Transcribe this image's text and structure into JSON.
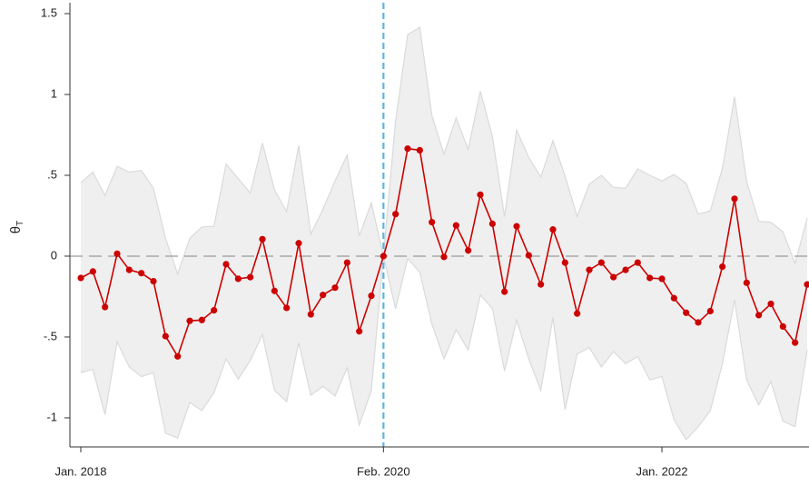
{
  "chart_data": {
    "type": "line",
    "y_label": "θ",
    "y_label_subscript": "T",
    "x": [
      "2018-01",
      "2018-02",
      "2018-03",
      "2018-04",
      "2018-05",
      "2018-06",
      "2018-07",
      "2018-08",
      "2018-09",
      "2018-10",
      "2018-11",
      "2018-12",
      "2019-01",
      "2019-02",
      "2019-03",
      "2019-04",
      "2019-05",
      "2019-06",
      "2019-07",
      "2019-08",
      "2019-09",
      "2019-10",
      "2019-11",
      "2019-12",
      "2020-01",
      "2020-02",
      "2020-03",
      "2020-04",
      "2020-05",
      "2020-06",
      "2020-07",
      "2020-08",
      "2020-09",
      "2020-10",
      "2020-11",
      "2020-12",
      "2021-01",
      "2021-02",
      "2021-03",
      "2021-04",
      "2021-05",
      "2021-06",
      "2021-07",
      "2021-08",
      "2021-09",
      "2021-10",
      "2021-11",
      "2021-12",
      "2022-01",
      "2022-02",
      "2022-03",
      "2022-04",
      "2022-05",
      "2022-06",
      "2022-07",
      "2022-08",
      "2022-09",
      "2022-10",
      "2022-11",
      "2022-12",
      "2023-01"
    ],
    "series": [
      {
        "color": "#cc0000",
        "values": [
          -0.135,
          -0.095,
          -0.315,
          0.015,
          -0.085,
          -0.105,
          -0.155,
          -0.495,
          -0.62,
          -0.4,
          -0.395,
          -0.335,
          -0.05,
          -0.14,
          -0.13,
          0.105,
          -0.215,
          -0.32,
          0.08,
          -0.36,
          -0.24,
          -0.195,
          -0.04,
          -0.465,
          -0.245,
          0,
          0.26,
          0.665,
          0.655,
          0.21,
          -0.005,
          0.19,
          0.035,
          0.38,
          0.2,
          -0.22,
          0.185,
          0.005,
          -0.175,
          0.165,
          -0.04,
          -0.355,
          -0.085,
          -0.04,
          -0.13,
          -0.085,
          -0.04,
          -0.135,
          -0.14,
          -0.26,
          -0.35,
          -0.41,
          -0.34,
          -0.065,
          0.355,
          -0.165,
          -0.365,
          -0.295,
          -0.435,
          -0.535,
          -0.175
        ]
      }
    ],
    "band": {
      "color": "#efefef",
      "edge_color": "#dadada",
      "upper": [
        0.455,
        0.52,
        0.375,
        0.555,
        0.52,
        0.53,
        0.42,
        0.11,
        -0.11,
        0.11,
        0.18,
        0.185,
        0.57,
        0.48,
        0.39,
        0.7,
        0.41,
        0.275,
        0.685,
        0.135,
        0.29,
        0.465,
        0.625,
        0.125,
        0.33,
        0,
        0.835,
        1.37,
        1.415,
        0.87,
        0.63,
        0.855,
        0.66,
        1.02,
        0.74,
        0.245,
        0.78,
        0.61,
        0.49,
        0.715,
        0.495,
        0.245,
        0.445,
        0.5,
        0.425,
        0.42,
        0.54,
        0.5,
        0.465,
        0.505,
        0.45,
        0.26,
        0.28,
        0.545,
        0.985,
        0.46,
        0.215,
        0.21,
        0.15,
        -0.045,
        0.235
      ],
      "lower": [
        -0.72,
        -0.7,
        -0.98,
        -0.53,
        -0.685,
        -0.745,
        -0.72,
        -1.095,
        -1.125,
        -0.905,
        -0.955,
        -0.845,
        -0.635,
        -0.76,
        -0.645,
        -0.485,
        -0.83,
        -0.9,
        -0.535,
        -0.86,
        -0.805,
        -0.865,
        -0.69,
        -1.045,
        -0.83,
        0,
        -0.325,
        -0.015,
        -0.1,
        -0.42,
        -0.635,
        -0.455,
        -0.58,
        -0.24,
        -0.325,
        -0.71,
        -0.395,
        -0.635,
        -0.83,
        -0.38,
        -0.95,
        -0.605,
        -0.565,
        -0.685,
        -0.59,
        -0.665,
        -0.62,
        -0.765,
        -0.745,
        -1.01,
        -1.135,
        -1.055,
        -0.955,
        -0.665,
        -0.27,
        -0.765,
        -0.92,
        -0.775,
        -1.02,
        -1.055,
        -0.58
      ]
    },
    "xlim": [
      "2018-01",
      "2023-01"
    ],
    "xticks": [
      {
        "value": "2018-01",
        "label": "Jan. 2018"
      },
      {
        "value": "2020-02",
        "label": "Feb. 2020"
      },
      {
        "value": "2022-01",
        "label": "Jan. 2022"
      }
    ],
    "ylim": [
      -1.18,
      1.56
    ],
    "yticks": [
      -1,
      {
        "value": -0.5,
        "label": "-.5"
      },
      0,
      {
        "value": 0.5,
        "label": ".5"
      },
      1,
      1.5
    ],
    "hline": 0,
    "hline_color": "#9a9a9a",
    "vline": "2020-02",
    "vline_color": "#5bb5e0",
    "grid": false
  }
}
